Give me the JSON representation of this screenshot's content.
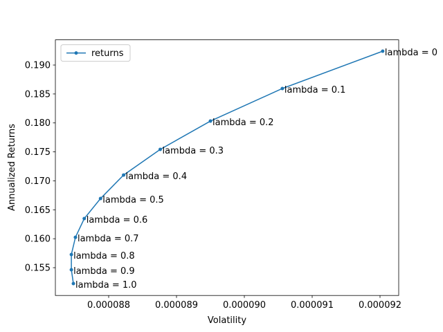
{
  "chart_data": {
    "type": "line",
    "xlabel": "Volatility",
    "ylabel": "Annualized Returns",
    "x": [
      9.204e-05,
      9.056e-05,
      8.95e-05,
      8.876e-05,
      8.822e-05,
      8.788e-05,
      8.764e-05,
      8.751e-05,
      8.745e-05,
      8.745e-05,
      8.748e-05
    ],
    "series": [
      {
        "name": "returns",
        "color": "#1f77b4",
        "values": [
          0.19239,
          0.18594,
          0.18032,
          0.17543,
          0.171,
          0.16694,
          0.16348,
          0.16025,
          0.15727,
          0.15464,
          0.15225
        ]
      }
    ],
    "annotations": [
      "lambda = 0",
      "lambda = 0.1",
      "lambda = 0.2",
      "lambda = 0.3",
      "lambda = 0.4",
      "lambda = 0.5",
      "lambda = 0.6",
      "lambda = 0.7",
      "lambda = 0.8",
      "lambda = 0.9",
      "lambda = 1.0"
    ],
    "xlim": [
      8.72143e-05,
      9.22755e-05
    ],
    "ylim": [
      0.1502,
      0.19435
    ],
    "xticks": [
      {
        "value": 8.8e-05,
        "label": "0.000088"
      },
      {
        "value": 8.9e-05,
        "label": "0.000089"
      },
      {
        "value": 9e-05,
        "label": "0.000090"
      },
      {
        "value": 9.1e-05,
        "label": "0.000091"
      },
      {
        "value": 9.2e-05,
        "label": "0.000092"
      }
    ],
    "yticks": [
      0.155,
      {
        "value": 0.16,
        "label": "0.160"
      },
      0.165,
      {
        "value": 0.17,
        "label": "0.170"
      },
      0.175,
      {
        "value": 0.18,
        "label": "0.180"
      },
      0.185,
      {
        "value": 0.19,
        "label": "0.190"
      }
    ],
    "grid": false,
    "legend": "upper-left"
  }
}
